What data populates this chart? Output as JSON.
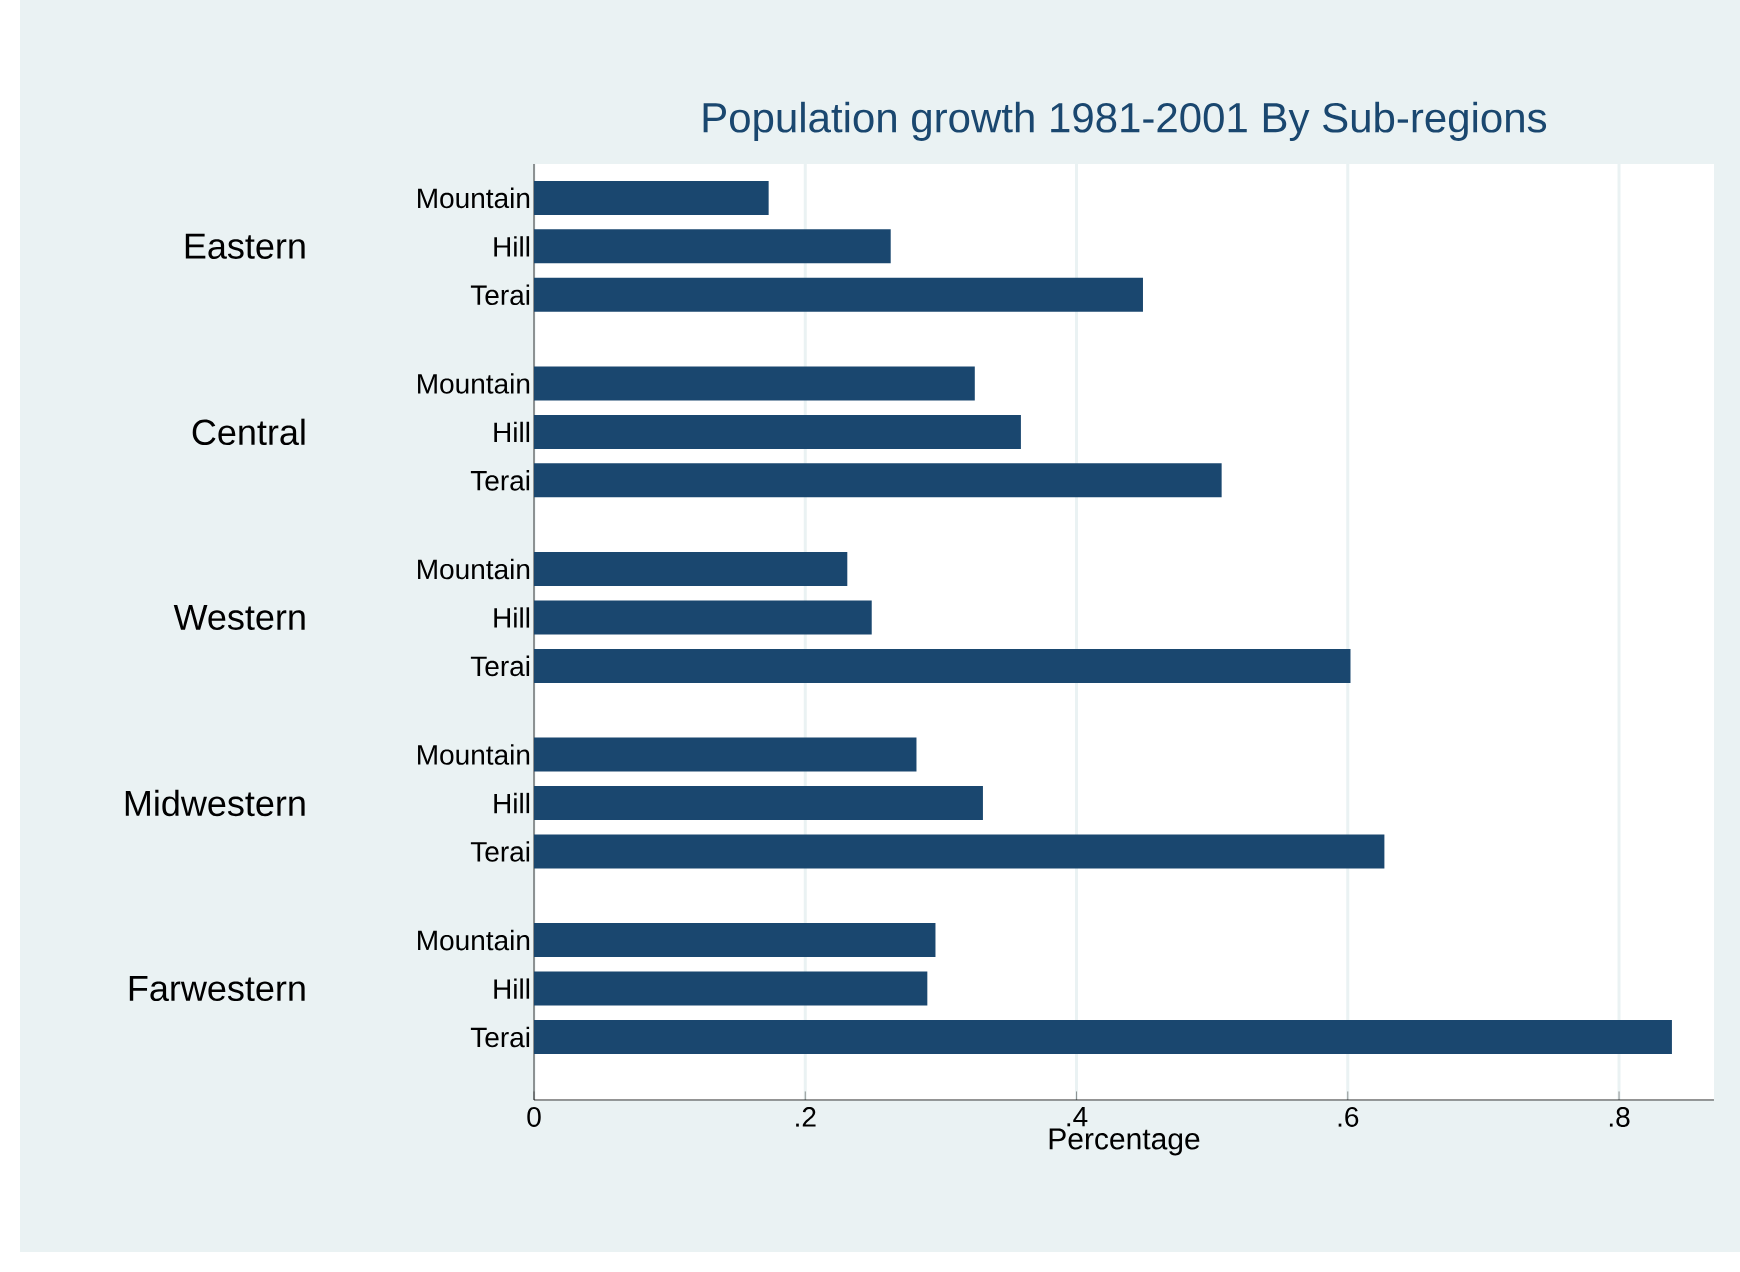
{
  "chart_data": {
    "type": "bar",
    "orientation": "horizontal",
    "title": "Population growth 1981-2001 By Sub-regions",
    "xlabel": "Percentage",
    "categories": [
      "Mountain",
      "Hill",
      "Terai",
      "Mountain",
      "Hill",
      "Terai",
      "Mountain",
      "Hill",
      "Terai",
      "Mountain",
      "Hill",
      "Terai",
      "Mountain",
      "Hill",
      "Terai"
    ],
    "annotations": [
      "Eastern",
      "Central",
      "Western",
      "Midwestern",
      "Farwestern"
    ],
    "values": [
      0.173,
      0.263,
      0.449,
      0.325,
      0.359,
      0.507,
      0.231,
      0.249,
      0.602,
      0.282,
      0.331,
      0.627,
      0.296,
      0.29,
      0.839
    ],
    "color": "#1a476f",
    "xlim": [
      0,
      0.87
    ],
    "xticks": [
      0,
      {
        "value": 0.2,
        "label": ".2"
      },
      {
        "value": 0.4,
        "label": ".4"
      },
      {
        "value": 0.6,
        "label": ".6"
      },
      {
        "value": 0.8,
        "label": ".8"
      }
    ],
    "grid": "x"
  }
}
